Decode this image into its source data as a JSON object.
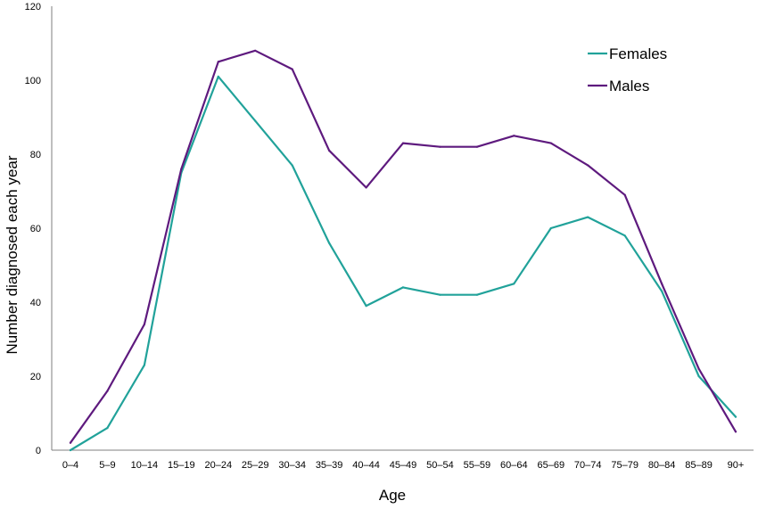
{
  "chart_data": {
    "type": "line",
    "title": "",
    "xlabel": "Age",
    "ylabel": "Number diagnosed each year",
    "ylim": [
      0,
      120
    ],
    "yticks": [
      0,
      20,
      40,
      60,
      80,
      100,
      120
    ],
    "grid": false,
    "legend_position": "top-right",
    "categories": [
      "0–4",
      "5–9",
      "10–14",
      "15–19",
      "20–24",
      "25–29",
      "30–34",
      "35–39",
      "40–44",
      "45–49",
      "50–54",
      "55–59",
      "60–64",
      "65–69",
      "70–74",
      "75–79",
      "80–84",
      "85–89",
      "90+"
    ],
    "series": [
      {
        "name": "Females",
        "color": "#21a29a",
        "values": [
          0,
          6,
          23,
          75,
          101,
          89,
          77,
          56,
          39,
          44,
          42,
          42,
          45,
          60,
          63,
          58,
          43,
          20,
          9
        ]
      },
      {
        "name": "Males",
        "color": "#5e1a7e",
        "values": [
          2,
          16,
          34,
          76,
          105,
          108,
          103,
          81,
          71,
          83,
          82,
          82,
          85,
          83,
          77,
          69,
          45,
          22,
          5
        ]
      }
    ]
  }
}
